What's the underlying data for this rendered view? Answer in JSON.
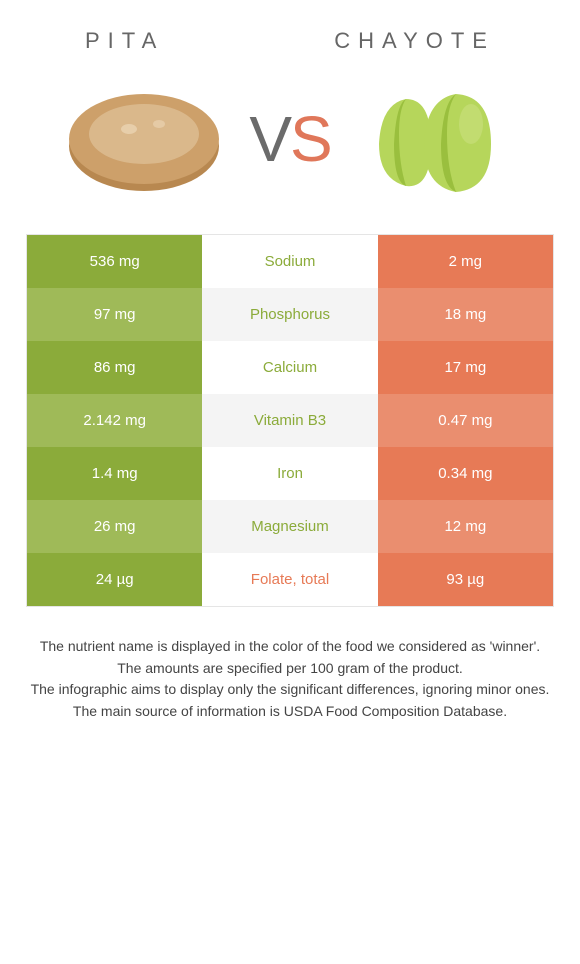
{
  "header": {
    "left_title": "PITA",
    "right_title": "CHAYOTE",
    "vs_v": "V",
    "vs_s": "S"
  },
  "colors": {
    "left_row_a": "#8bab3a",
    "left_row_b": "#9fba58",
    "right_row_a": "#e77a56",
    "right_row_b": "#ea8e6f",
    "winner_left": "#8bab3a",
    "winner_right": "#e77a56",
    "pita_bread": "#cda06a",
    "pita_edge": "#b88850",
    "chayote_body": "#b6d65b",
    "chayote_shade": "#9abf3e"
  },
  "rows": [
    {
      "left": "536 mg",
      "label": "Sodium",
      "right": "2 mg",
      "winner": "left"
    },
    {
      "left": "97 mg",
      "label": "Phosphorus",
      "right": "18 mg",
      "winner": "left"
    },
    {
      "left": "86 mg",
      "label": "Calcium",
      "right": "17 mg",
      "winner": "left"
    },
    {
      "left": "2.142 mg",
      "label": "Vitamin B3",
      "right": "0.47 mg",
      "winner": "left"
    },
    {
      "left": "1.4 mg",
      "label": "Iron",
      "right": "0.34 mg",
      "winner": "left"
    },
    {
      "left": "26 mg",
      "label": "Magnesium",
      "right": "12 mg",
      "winner": "left"
    },
    {
      "left": "24 µg",
      "label": "Folate, total",
      "right": "93 µg",
      "winner": "right"
    }
  ],
  "footer": {
    "l1": "The nutrient name is displayed in the color of the food we considered as 'winner'.",
    "l2": "The amounts are specified per 100 gram of the product.",
    "l3": "The infographic aims to display only the significant differences, ignoring minor ones.",
    "l4": "The main source of information is USDA Food Composition Database."
  }
}
